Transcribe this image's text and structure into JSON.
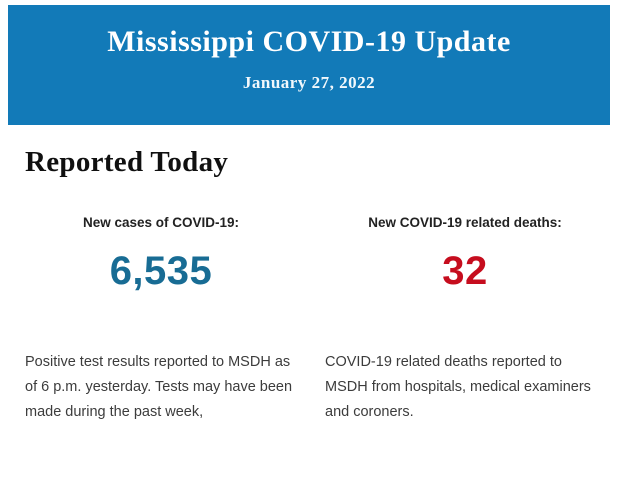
{
  "header": {
    "title": "Mississippi COVID-19 Update",
    "date": "January 27, 2022",
    "background_color": "#127ab8",
    "text_color": "#ffffff"
  },
  "section": {
    "heading": "Reported Today"
  },
  "stats": [
    {
      "label": "New cases of COVID-19:",
      "value": "6,535",
      "value_color": "#186c94",
      "description": "Positive test results reported to MSDH as of 6 p.m. yesterday. Tests may have been made during the past week,"
    },
    {
      "label": "New COVID-19 related deaths:",
      "value": "32",
      "value_color": "#c60d1e",
      "description": "COVID-19 related deaths reported to MSDH from hospitals, medical examiners and coroners."
    }
  ]
}
